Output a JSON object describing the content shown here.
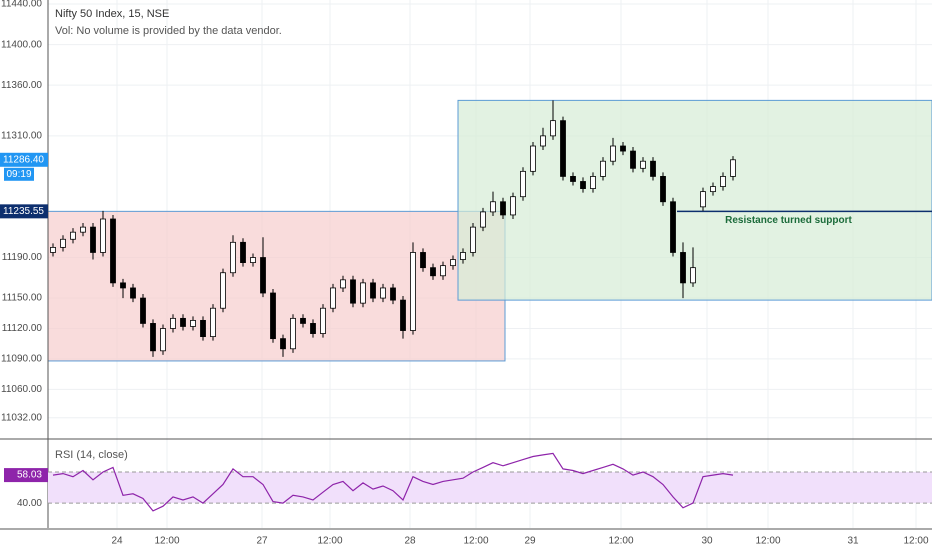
{
  "chart_data": {
    "type": "candlestick",
    "title": "Nifty 50 Index, 15, NSE",
    "subtitle": "Vol: No volume is provided by the data vendor.",
    "open": [
      11195,
      11200,
      11208,
      11215,
      11220,
      11195,
      11228,
      11165,
      11160,
      11150,
      11125,
      11098,
      11120,
      11130,
      11122,
      11128,
      11112,
      11140,
      11175,
      11205,
      11185,
      11190,
      11155,
      11110,
      11100,
      11130,
      11125,
      11115,
      11140,
      11160,
      11168,
      11145,
      11165,
      11150,
      11160,
      11148,
      11118,
      11195,
      11180,
      11172,
      11182,
      11188,
      11195,
      11220,
      11235,
      11245,
      11232,
      11250,
      11275,
      11300,
      11310,
      11325,
      11270,
      11265,
      11258,
      11270,
      11285,
      11300,
      11295,
      11278,
      11285,
      11270,
      11245,
      11195,
      11165,
      11240,
      11255,
      11260,
      11270
    ],
    "high": [
      11204,
      11212,
      11219,
      11224,
      11224,
      11236,
      11232,
      11169,
      11164,
      11154,
      11129,
      11124,
      11134,
      11134,
      11132,
      11132,
      11144,
      11179,
      11212,
      11209,
      11194,
      11210,
      11159,
      11114,
      11134,
      11134,
      11129,
      11144,
      11164,
      11172,
      11172,
      11169,
      11169,
      11164,
      11164,
      11152,
      11205,
      11199,
      11184,
      11186,
      11192,
      11199,
      11224,
      11239,
      11255,
      11249,
      11254,
      11279,
      11304,
      11318,
      11345,
      11329,
      11274,
      11269,
      11274,
      11289,
      11308,
      11304,
      11299,
      11289,
      11289,
      11274,
      11249,
      11205,
      11200,
      11259,
      11264,
      11274,
      11290
    ],
    "low": [
      11191,
      11196,
      11204,
      11211,
      11188,
      11191,
      11161,
      11150,
      11146,
      11121,
      11092,
      11094,
      11116,
      11118,
      11118,
      11108,
      11108,
      11136,
      11171,
      11181,
      11181,
      11151,
      11106,
      11092,
      11096,
      11121,
      11111,
      11111,
      11136,
      11156,
      11141,
      11141,
      11146,
      11146,
      11144,
      11110,
      11114,
      11176,
      11168,
      11168,
      11178,
      11184,
      11191,
      11216,
      11231,
      11228,
      11228,
      11246,
      11271,
      11296,
      11306,
      11266,
      11261,
      11254,
      11254,
      11266,
      11281,
      11291,
      11274,
      11274,
      11266,
      11241,
      11191,
      11150,
      11161,
      11236,
      11251,
      11256,
      11266
    ],
    "close": [
      11200,
      11208,
      11215,
      11220,
      11195,
      11228,
      11165,
      11160,
      11150,
      11125,
      11098,
      11120,
      11130,
      11122,
      11128,
      11112,
      11140,
      11175,
      11205,
      11185,
      11190,
      11155,
      11110,
      11100,
      11130,
      11125,
      11115,
      11140,
      11160,
      11168,
      11145,
      11165,
      11150,
      11160,
      11148,
      11118,
      11195,
      11180,
      11172,
      11182,
      11188,
      11195,
      11220,
      11235,
      11245,
      11232,
      11250,
      11275,
      11300,
      11310,
      11325,
      11270,
      11265,
      11258,
      11270,
      11285,
      11300,
      11295,
      11278,
      11285,
      11270,
      11245,
      11195,
      11165,
      11180,
      11255,
      11260,
      11270,
      11286.4
    ],
    "xlim": [
      0,
      88.4
    ],
    "xticks": [
      {
        "value": 6.9,
        "label": "24"
      },
      {
        "value": 11.9,
        "label": "12:00"
      },
      {
        "value": 21.4,
        "label": "27"
      },
      {
        "value": 28.2,
        "label": "12:00"
      },
      {
        "value": 36.2,
        "label": "28"
      },
      {
        "value": 42.8,
        "label": "12:00"
      },
      {
        "value": 48.2,
        "label": "29"
      },
      {
        "value": 57.3,
        "label": "12:00"
      },
      {
        "value": 65.9,
        "label": "30"
      },
      {
        "value": 72,
        "label": "12:00"
      },
      {
        "value": 80.5,
        "label": "31"
      },
      {
        "value": 86.8,
        "label": "12:00"
      }
    ],
    "ylim": [
      11012,
      11444
    ],
    "yticks": [
      {
        "value": 11440,
        "label": "11440.00"
      },
      {
        "value": 11400,
        "label": "11400.00"
      },
      {
        "value": 11360,
        "label": "11360.00"
      },
      {
        "value": 11310,
        "label": "11310.00"
      },
      {
        "value": 11190,
        "label": "11190.00"
      },
      {
        "value": 11150,
        "label": "11150.00"
      },
      {
        "value": 11120,
        "label": "11120.00"
      },
      {
        "value": 11090,
        "label": "11090.00"
      },
      {
        "value": 11060,
        "label": "11060.00"
      },
      {
        "value": 11032,
        "label": "11032.00"
      }
    ],
    "grid": true,
    "up_color": "#ffffff",
    "down_color": "#000000",
    "price_markers": [
      {
        "value": 11286.4,
        "label": "11286.40",
        "color": "#2196f3"
      },
      {
        "value": 11235.55,
        "label": "11235.55",
        "color": "#0d2f6e"
      }
    ],
    "countdown": "09:19",
    "boxes": [
      {
        "x": [
          0,
          45.7
        ],
        "y": [
          11088,
          11235.55
        ],
        "color": "#f7cdcd",
        "border": "#5b9bd5"
      },
      {
        "x": [
          41,
          88.4
        ],
        "y": [
          11148,
          11345
        ],
        "color": "#d6ecd6",
        "border": "#5b9bd5"
      }
    ],
    "lines": [
      {
        "x": [
          62.9,
          88.4
        ],
        "y": 11235.55,
        "color": "#0d2f6e",
        "label": "Resistance turned support",
        "label_color": "#1b6b3a"
      }
    ],
    "rsi": {
      "title": "RSI (14, close)",
      "color": "#8e24aa",
      "ylim": [
        24,
        80.6
      ],
      "band": [
        40,
        60
      ],
      "yticks": [
        {
          "value": 40,
          "label": "40.00"
        }
      ],
      "values": [
        58,
        59,
        57,
        61,
        55,
        60,
        63,
        45,
        46,
        43,
        35,
        38,
        44,
        42,
        44,
        40,
        46,
        52,
        62,
        57,
        57,
        52,
        41,
        40,
        45,
        44,
        42,
        47,
        52,
        54,
        48,
        53,
        49,
        51,
        48,
        42,
        57,
        54,
        52,
        54,
        55,
        56,
        60,
        63,
        66,
        64,
        66,
        68,
        70,
        71,
        72,
        62,
        61,
        59,
        61,
        63,
        65,
        62,
        58,
        60,
        57,
        52,
        44,
        37,
        40,
        57,
        58,
        59,
        58.03
      ]
    }
  }
}
